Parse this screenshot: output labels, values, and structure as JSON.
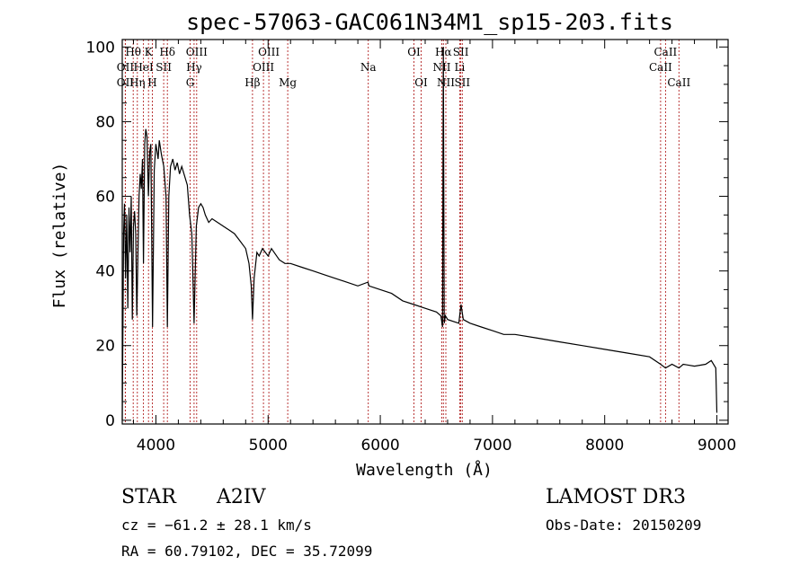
{
  "chart_data": {
    "type": "line",
    "title": "spec-57063-GAC061N34M1_sp15-203.fits",
    "xlabel": "Wavelength (Å)",
    "ylabel": "Flux (relative)",
    "xlim": [
      3700,
      9100
    ],
    "ylim": [
      -1,
      102
    ],
    "xticks": [
      4000,
      5000,
      6000,
      7000,
      8000,
      9000
    ],
    "xtick_labels": [
      "4000",
      "5000",
      "6000",
      "7000",
      "8000",
      "9000"
    ],
    "yticks": [
      0,
      20,
      40,
      60,
      80,
      100
    ],
    "ytick_labels": [
      "0",
      "20",
      "40",
      "60",
      "80",
      "100"
    ],
    "grid": false,
    "spectrum_anchors": [
      [
        3700,
        0
      ],
      [
        3705,
        20
      ],
      [
        3712,
        50
      ],
      [
        3720,
        58
      ],
      [
        3730,
        38
      ],
      [
        3740,
        55
      ],
      [
        3750,
        30
      ],
      [
        3760,
        57
      ],
      [
        3770,
        45
      ],
      [
        3780,
        60
      ],
      [
        3790,
        27
      ],
      [
        3800,
        52
      ],
      [
        3810,
        56
      ],
      [
        3820,
        50
      ],
      [
        3830,
        28
      ],
      [
        3840,
        45
      ],
      [
        3850,
        60
      ],
      [
        3860,
        66
      ],
      [
        3870,
        62
      ],
      [
        3880,
        70
      ],
      [
        3889,
        42
      ],
      [
        3900,
        74
      ],
      [
        3910,
        78
      ],
      [
        3920,
        76
      ],
      [
        3933,
        60
      ],
      [
        3945,
        72
      ],
      [
        3955,
        74
      ],
      [
        3970,
        25
      ],
      [
        3985,
        67
      ],
      [
        4000,
        74
      ],
      [
        4010,
        72
      ],
      [
        4020,
        70
      ],
      [
        4030,
        75
      ],
      [
        4050,
        71
      ],
      [
        4070,
        68
      ],
      [
        4090,
        60
      ],
      [
        4102,
        25
      ],
      [
        4115,
        60
      ],
      [
        4130,
        68
      ],
      [
        4150,
        70
      ],
      [
        4170,
        67
      ],
      [
        4190,
        69
      ],
      [
        4210,
        66
      ],
      [
        4230,
        68
      ],
      [
        4260,
        65
      ],
      [
        4280,
        63
      ],
      [
        4300,
        55
      ],
      [
        4320,
        50
      ],
      [
        4340,
        26
      ],
      [
        4360,
        52
      ],
      [
        4380,
        57
      ],
      [
        4400,
        58
      ],
      [
        4420,
        57
      ],
      [
        4440,
        55
      ],
      [
        4471,
        53
      ],
      [
        4500,
        54
      ],
      [
        4550,
        53
      ],
      [
        4600,
        52
      ],
      [
        4650,
        51
      ],
      [
        4700,
        50
      ],
      [
        4750,
        48
      ],
      [
        4800,
        46
      ],
      [
        4830,
        42
      ],
      [
        4850,
        36
      ],
      [
        4861,
        27
      ],
      [
        4875,
        38
      ],
      [
        4900,
        45
      ],
      [
        4920,
        44
      ],
      [
        4950,
        46
      ],
      [
        5000,
        44
      ],
      [
        5030,
        46
      ],
      [
        5100,
        43
      ],
      [
        5150,
        42
      ],
      [
        5200,
        42
      ],
      [
        5300,
        41
      ],
      [
        5400,
        40
      ],
      [
        5500,
        39
      ],
      [
        5600,
        38
      ],
      [
        5700,
        37
      ],
      [
        5800,
        36
      ],
      [
        5890,
        37
      ],
      [
        5900,
        36
      ],
      [
        6000,
        35
      ],
      [
        6100,
        34
      ],
      [
        6200,
        32
      ],
      [
        6300,
        31
      ],
      [
        6400,
        30
      ],
      [
        6500,
        29
      ],
      [
        6540,
        28
      ],
      [
        6555,
        25
      ],
      [
        6562,
        100
      ],
      [
        6570,
        26
      ],
      [
        6580,
        28
      ],
      [
        6600,
        27
      ],
      [
        6700,
        26
      ],
      [
        6720,
        31
      ],
      [
        6740,
        27
      ],
      [
        6800,
        26
      ],
      [
        6900,
        25
      ],
      [
        7000,
        24
      ],
      [
        7100,
        23
      ],
      [
        7200,
        23
      ],
      [
        7400,
        22
      ],
      [
        7600,
        21
      ],
      [
        7800,
        20
      ],
      [
        8000,
        19
      ],
      [
        8200,
        18
      ],
      [
        8400,
        17
      ],
      [
        8498,
        15
      ],
      [
        8542,
        14
      ],
      [
        8600,
        15
      ],
      [
        8662,
        14
      ],
      [
        8700,
        15
      ],
      [
        8800,
        14.5
      ],
      [
        8900,
        15
      ],
      [
        8950,
        16
      ],
      [
        8990,
        14
      ],
      [
        9000,
        2
      ]
    ],
    "line_markers": [
      {
        "label": "Hθ",
        "wavelength": 3798,
        "row": 0
      },
      {
        "label": "OII",
        "wavelength": 3727,
        "row": 1
      },
      {
        "label": "OII",
        "wavelength": 3727,
        "row": 2
      },
      {
        "label": "Hη",
        "wavelength": 3835,
        "row": 2
      },
      {
        "label": "K",
        "wavelength": 3934,
        "row": 0
      },
      {
        "label": "HeI",
        "wavelength": 3889,
        "row": 1
      },
      {
        "label": "H",
        "wavelength": 3968,
        "row": 2
      },
      {
        "label": "SII",
        "wavelength": 4069,
        "row": 1
      },
      {
        "label": "Hδ",
        "wavelength": 4102,
        "row": 0
      },
      {
        "label": "OIII",
        "wavelength": 4363,
        "row": 0
      },
      {
        "label": "Hγ",
        "wavelength": 4340,
        "row": 1
      },
      {
        "label": "G",
        "wavelength": 4305,
        "row": 2
      },
      {
        "label": "Hβ",
        "wavelength": 4861,
        "row": 2
      },
      {
        "label": "OIII",
        "wavelength": 5007,
        "row": 0
      },
      {
        "label": "OIII",
        "wavelength": 4959,
        "row": 1
      },
      {
        "label": "Mg",
        "wavelength": 5175,
        "row": 2
      },
      {
        "label": "Na",
        "wavelength": 5893,
        "row": 1
      },
      {
        "label": "OI",
        "wavelength": 6300,
        "row": 0
      },
      {
        "label": "OI",
        "wavelength": 6364,
        "row": 2
      },
      {
        "label": "Hα",
        "wavelength": 6563,
        "row": 0
      },
      {
        "label": "SII",
        "wavelength": 6717,
        "row": 0
      },
      {
        "label": "NII",
        "wavelength": 6548,
        "row": 1
      },
      {
        "label": "Li",
        "wavelength": 6708,
        "row": 1
      },
      {
        "label": "NII",
        "wavelength": 6584,
        "row": 2
      },
      {
        "label": "SII",
        "wavelength": 6731,
        "row": 2
      },
      {
        "label": "CaII",
        "wavelength": 8542,
        "row": 0
      },
      {
        "label": "CaII",
        "wavelength": 8498,
        "row": 1
      },
      {
        "label": "CaII",
        "wavelength": 8662,
        "row": 2
      }
    ]
  },
  "info": {
    "class": "STAR",
    "subclass": "A2IV",
    "survey": "LAMOST DR3",
    "cz": "cz = −61.2 ± 28.1 km/s",
    "obs_date": "Obs-Date: 20150209",
    "coords": "RA =  60.79102, DEC =  35.72099"
  }
}
